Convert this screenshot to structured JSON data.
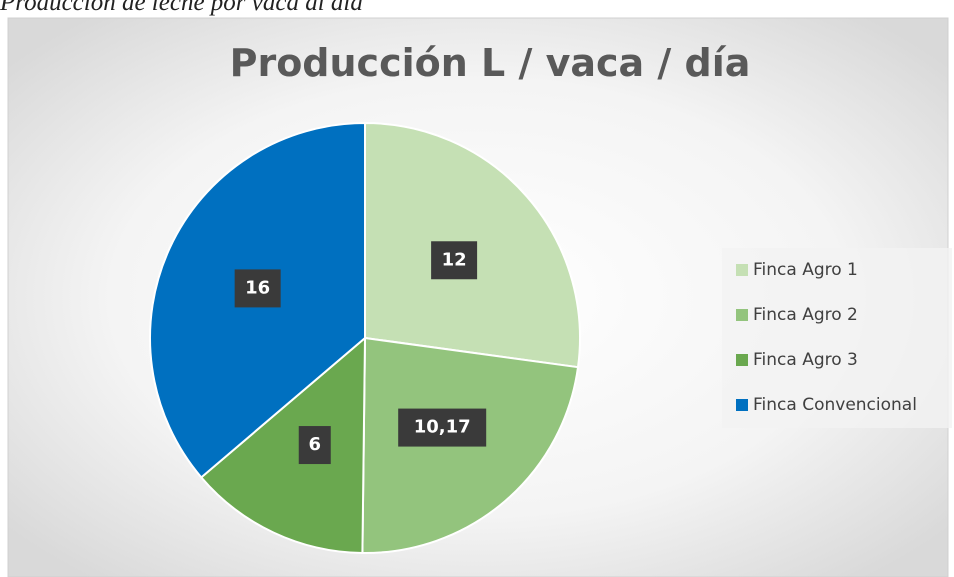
{
  "caption": "Producción de leche por vaca al día",
  "chart_data": {
    "type": "pie",
    "title": "Producción L / vaca / día",
    "categories": [
      "Finca Agro 1",
      "Finca Agro 2",
      "Finca Agro 3",
      "Finca Convencional"
    ],
    "values": [
      12,
      10.17,
      6,
      16
    ],
    "value_labels": [
      "12",
      "10,17",
      "6",
      "16"
    ],
    "colors": [
      "#c5e0b4",
      "#93c47d",
      "#6aa84f",
      "#0070c0"
    ],
    "legend": "right"
  }
}
